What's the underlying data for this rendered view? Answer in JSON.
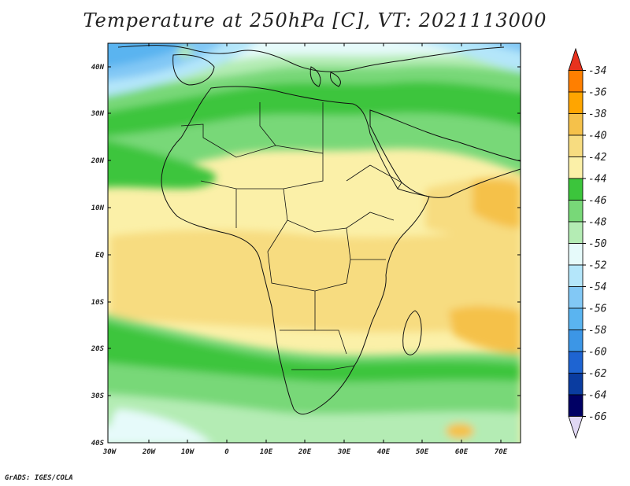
{
  "title": "Temperature at 250hPa [C], VT: 2021113000",
  "credit": "GrADS: IGES/COLA",
  "map": {
    "lat_labels": [
      "40N",
      "30N",
      "20N",
      "10N",
      "EQ",
      "10S",
      "20S",
      "30S",
      "40S"
    ],
    "lon_labels": [
      "30W",
      "20W",
      "10W",
      "0",
      "10E",
      "20E",
      "30E",
      "40E",
      "50E",
      "60E",
      "70E"
    ]
  },
  "colorbar": {
    "labels": [
      "-34",
      "-36",
      "-38",
      "-40",
      "-42",
      "-44",
      "-46",
      "-48",
      "-50",
      "-52",
      "-54",
      "-56",
      "-58",
      "-60",
      "-62",
      "-64",
      "-66"
    ],
    "colors": [
      "#e8321e",
      "#ff7f00",
      "#ffa500",
      "#f5c14a",
      "#f7dc80",
      "#fbf0a8",
      "#3cc53c",
      "#78d878",
      "#b4ecb4",
      "#e6fafa",
      "#b4e6fa",
      "#82c8f5",
      "#5ab4f0",
      "#3c96e6",
      "#1e64d2",
      "#0a3ca0",
      "#000064",
      "#e0d8f4"
    ]
  }
}
